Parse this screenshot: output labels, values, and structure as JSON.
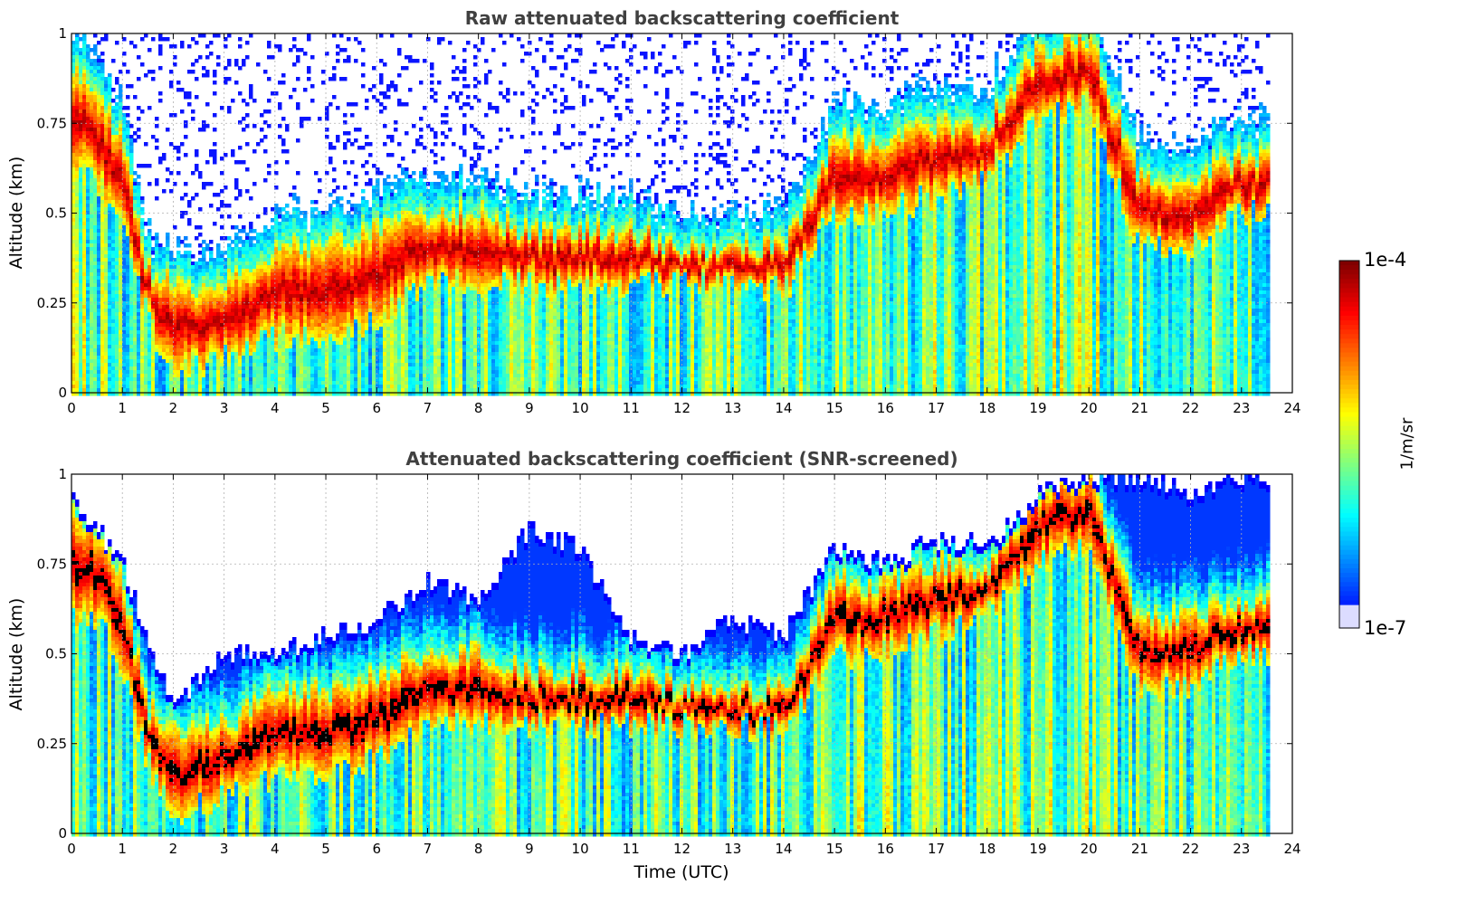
{
  "chart_data": [
    {
      "type": "heatmap",
      "title": "Raw attenuated backscattering coefficient",
      "xlabel": "",
      "ylabel": "Altitude (km)",
      "xlim": [
        0,
        24
      ],
      "ylim": [
        0,
        1
      ],
      "x_ticks": [
        "0",
        "1",
        "2",
        "3",
        "4",
        "5",
        "6",
        "7",
        "8",
        "9",
        "10",
        "11",
        "12",
        "13",
        "14",
        "15",
        "16",
        "17",
        "18",
        "19",
        "20",
        "21",
        "22",
        "23",
        "24"
      ],
      "y_ticks": [
        "0",
        "0.25",
        "0.5",
        "0.75",
        "1"
      ],
      "grid": true,
      "colormap": "jet",
      "color_scale": "log",
      "clim": [
        "1e-7",
        "1e-4"
      ],
      "cloud_layers": [
        {
          "x": [
            0,
            0.5,
            1,
            1.5,
            2,
            3,
            4,
            5,
            6,
            7,
            8,
            9,
            10,
            11,
            12,
            13,
            14,
            15,
            16,
            17,
            18,
            19,
            20,
            21,
            22,
            23,
            23.6
          ],
          "base": [
            0.6,
            0.6,
            0.45,
            0.2,
            0.05,
            0.1,
            0.15,
            0.15,
            0.2,
            0.3,
            0.3,
            0.3,
            0.3,
            0.3,
            0.3,
            0.3,
            0.28,
            0.5,
            0.5,
            0.55,
            0.6,
            0.75,
            0.8,
            0.4,
            0.4,
            0.5,
            0.5
          ],
          "top": [
            0.9,
            0.85,
            0.7,
            0.35,
            0.3,
            0.3,
            0.4,
            0.4,
            0.45,
            0.5,
            0.5,
            0.45,
            0.45,
            0.45,
            0.4,
            0.4,
            0.4,
            0.7,
            0.7,
            0.75,
            0.75,
            0.95,
            1.0,
            0.6,
            0.6,
            0.65,
            0.65
          ]
        }
      ]
    },
    {
      "type": "heatmap",
      "title": "Attenuated backscattering coefficient (SNR-screened)",
      "xlabel": "Time (UTC)",
      "ylabel": "Altitude (km)",
      "xlim": [
        0,
        24
      ],
      "ylim": [
        0,
        1
      ],
      "x_ticks": [
        "0",
        "1",
        "2",
        "3",
        "4",
        "5",
        "6",
        "7",
        "8",
        "9",
        "10",
        "11",
        "12",
        "13",
        "14",
        "15",
        "16",
        "17",
        "18",
        "19",
        "20",
        "21",
        "22",
        "23",
        "24"
      ],
      "y_ticks": [
        "0",
        "0.25",
        "0.5",
        "0.75",
        "1"
      ],
      "grid": true,
      "colormap": "jet",
      "color_scale": "log",
      "clim": [
        "1e-7",
        "1e-4"
      ],
      "signal_top": {
        "x": [
          0,
          1,
          2,
          3,
          4,
          5,
          6,
          7,
          8,
          9,
          10,
          11,
          12,
          13,
          14,
          15,
          16,
          17,
          18,
          19,
          20,
          21,
          22,
          23,
          23.6
        ],
        "y": [
          0.95,
          0.75,
          0.35,
          0.5,
          0.5,
          0.55,
          0.6,
          0.7,
          0.65,
          0.85,
          0.8,
          0.55,
          0.5,
          0.6,
          0.55,
          0.8,
          0.75,
          0.82,
          0.8,
          0.95,
          1.0,
          1.0,
          0.95,
          1.0,
          1.0
        ]
      }
    }
  ],
  "colorbar": {
    "label": "1/m/sr",
    "max_label": "1e-4",
    "min_label": "1e-7"
  },
  "colors": {
    "dark_red": "#800000",
    "red": "#ff0000",
    "orange": "#ff8000",
    "yellow": "#ffff00",
    "cyan": "#00ffff",
    "blue": "#0000ff",
    "dark_blue": "#00008f",
    "screened": "#000000"
  }
}
